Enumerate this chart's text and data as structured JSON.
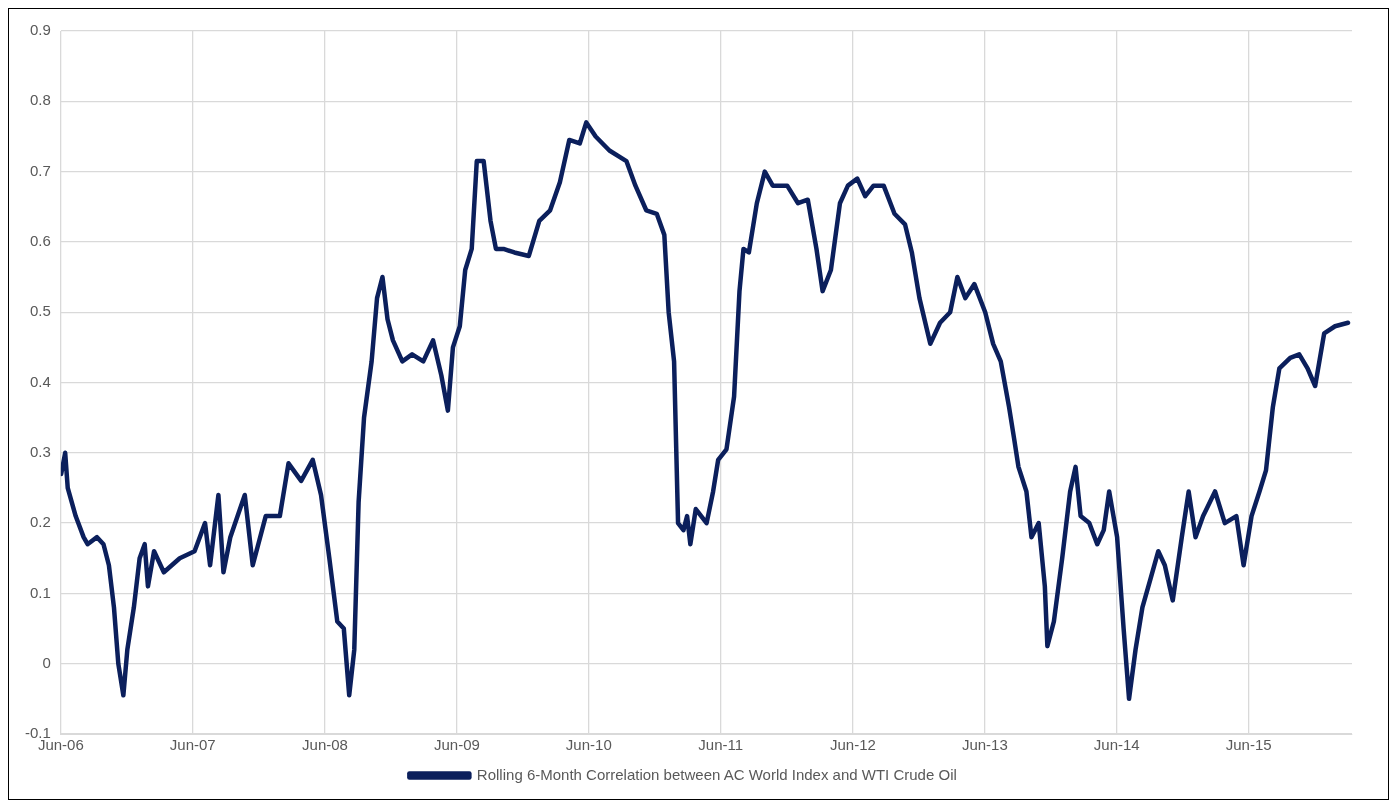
{
  "chart_data": {
    "type": "line",
    "x": [
      "2006-06-02",
      "2006-06-13",
      "2006-06-20",
      "2006-07-12",
      "2006-08-03",
      "2006-08-14",
      "2006-09-09",
      "2006-09-27",
      "2006-10-12",
      "2006-10-26",
      "2006-11-07",
      "2006-11-21",
      "2006-12-02",
      "2006-12-20",
      "2007-01-05",
      "2007-01-19",
      "2007-01-28",
      "2007-02-14",
      "2007-03-13",
      "2007-04-26",
      "2007-06-06",
      "2007-07-05",
      "2007-07-19",
      "2007-08-11",
      "2007-08-25",
      "2007-09-13",
      "2007-10-23",
      "2007-11-14",
      "2007-12-20",
      "2008-01-28",
      "2008-02-21",
      "2008-03-27",
      "2008-04-28",
      "2008-05-21",
      "2008-06-13",
      "2008-07-05",
      "2008-07-23",
      "2008-08-07",
      "2008-08-21",
      "2008-09-02",
      "2008-09-17",
      "2008-10-08",
      "2008-10-23",
      "2008-11-07",
      "2008-11-21",
      "2008-12-06",
      "2009-01-01",
      "2009-01-28",
      "2009-02-28",
      "2009-03-27",
      "2009-04-19",
      "2009-05-07",
      "2009-05-21",
      "2009-06-09",
      "2009-06-24",
      "2009-07-12",
      "2009-07-26",
      "2009-08-14",
      "2009-09-02",
      "2009-09-17",
      "2009-10-08",
      "2009-11-07",
      "2009-12-17",
      "2010-01-15",
      "2010-02-14",
      "2010-03-13",
      "2010-04-08",
      "2010-05-07",
      "2010-05-25",
      "2010-06-20",
      "2010-07-28",
      "2010-09-13",
      "2010-10-08",
      "2010-11-07",
      "2010-12-06",
      "2010-12-27",
      "2011-01-08",
      "2011-01-23",
      "2011-02-03",
      "2011-02-18",
      "2011-02-28",
      "2011-03-09",
      "2011-03-24",
      "2011-04-23",
      "2011-05-11",
      "2011-05-25",
      "2011-06-17",
      "2011-07-08",
      "2011-07-23",
      "2011-08-03",
      "2011-08-18",
      "2011-09-09",
      "2011-10-01",
      "2011-10-23",
      "2011-12-02",
      "2012-01-01",
      "2012-01-28",
      "2012-02-21",
      "2012-03-09",
      "2012-04-01",
      "2012-04-26",
      "2012-05-18",
      "2012-06-13",
      "2012-07-05",
      "2012-07-28",
      "2012-08-25",
      "2012-09-24",
      "2012-10-23",
      "2012-11-11",
      "2012-12-02",
      "2013-01-01",
      "2013-01-28",
      "2013-02-25",
      "2013-03-17",
      "2013-04-08",
      "2013-05-03",
      "2013-06-02",
      "2013-06-24",
      "2013-07-15",
      "2013-08-07",
      "2013-08-21",
      "2013-09-02",
      "2013-09-24",
      "2013-10-08",
      "2013-10-28",
      "2013-11-14",
      "2013-11-21",
      "2013-12-09",
      "2014-01-01",
      "2014-01-23",
      "2014-02-07",
      "2014-02-21",
      "2014-03-17",
      "2014-04-08",
      "2014-04-26",
      "2014-05-11",
      "2014-06-02",
      "2014-06-20",
      "2014-07-05",
      "2014-07-23",
      "2014-08-11",
      "2014-09-02",
      "2014-09-24",
      "2014-10-12",
      "2014-11-03",
      "2014-11-28",
      "2014-12-17",
      "2015-01-05",
      "2015-01-26",
      "2015-02-28",
      "2015-03-27",
      "2015-04-28",
      "2015-05-18",
      "2015-06-09",
      "2015-07-01",
      "2015-07-19",
      "2015-08-07",
      "2015-08-25",
      "2015-09-24",
      "2015-10-19",
      "2015-11-11",
      "2015-12-02",
      "2015-12-27",
      "2016-01-26",
      "2016-03-02"
    ],
    "series": [
      {
        "name": "Rolling 6-Month Correlation between AC World Index and WTI Crude Oil",
        "color": "#0b1f5c",
        "values": [
          0.27,
          0.3,
          0.25,
          0.21,
          0.18,
          0.17,
          0.18,
          0.17,
          0.14,
          0.08,
          0.0,
          -0.045,
          0.02,
          0.08,
          0.15,
          0.17,
          0.11,
          0.16,
          0.13,
          0.15,
          0.16,
          0.2,
          0.14,
          0.24,
          0.13,
          0.18,
          0.24,
          0.14,
          0.21,
          0.21,
          0.285,
          0.26,
          0.29,
          0.24,
          0.15,
          0.06,
          0.05,
          -0.045,
          0.02,
          0.23,
          0.35,
          0.43,
          0.52,
          0.55,
          0.49,
          0.46,
          0.43,
          0.44,
          0.43,
          0.46,
          0.41,
          0.36,
          0.45,
          0.48,
          0.56,
          0.59,
          0.715,
          0.715,
          0.63,
          0.59,
          0.59,
          0.585,
          0.58,
          0.63,
          0.645,
          0.685,
          0.745,
          0.74,
          0.77,
          0.75,
          0.73,
          0.715,
          0.68,
          0.645,
          0.64,
          0.61,
          0.5,
          0.43,
          0.2,
          0.19,
          0.21,
          0.17,
          0.22,
          0.2,
          0.245,
          0.29,
          0.305,
          0.38,
          0.53,
          0.59,
          0.585,
          0.655,
          0.7,
          0.68,
          0.68,
          0.655,
          0.66,
          0.59,
          0.53,
          0.56,
          0.655,
          0.68,
          0.69,
          0.665,
          0.68,
          0.68,
          0.64,
          0.625,
          0.585,
          0.52,
          0.455,
          0.485,
          0.5,
          0.55,
          0.52,
          0.54,
          0.5,
          0.455,
          0.43,
          0.365,
          0.32,
          0.28,
          0.245,
          0.18,
          0.2,
          0.11,
          0.025,
          0.06,
          0.15,
          0.245,
          0.28,
          0.21,
          0.2,
          0.17,
          0.19,
          0.245,
          0.18,
          0.05,
          -0.05,
          0.02,
          0.08,
          0.12,
          0.16,
          0.14,
          0.09,
          0.18,
          0.245,
          0.18,
          0.21,
          0.245,
          0.2,
          0.21,
          0.14,
          0.21,
          0.245,
          0.275,
          0.365,
          0.42,
          0.435,
          0.44,
          0.42,
          0.395,
          0.47,
          0.48,
          0.485
        ]
      }
    ],
    "xlim": [
      "2006-06-01",
      "2016-03-13"
    ],
    "xticks": [
      {
        "value": "2006-06-01",
        "label": "Jun-06"
      },
      {
        "value": "2007-06-01",
        "label": "Jun-07"
      },
      {
        "value": "2008-06-01",
        "label": "Jun-08"
      },
      {
        "value": "2009-06-01",
        "label": "Jun-09"
      },
      {
        "value": "2010-06-01",
        "label": "Jun-10"
      },
      {
        "value": "2011-06-01",
        "label": "Jun-11"
      },
      {
        "value": "2012-06-01",
        "label": "Jun-12"
      },
      {
        "value": "2013-06-01",
        "label": "Jun-13"
      },
      {
        "value": "2014-06-01",
        "label": "Jun-14"
      },
      {
        "value": "2015-06-01",
        "label": "Jun-15"
      }
    ],
    "ylim": [
      -0.1,
      0.9
    ],
    "yticks": [
      -0.1,
      0,
      0.1,
      0.2,
      0.3,
      0.4,
      0.5,
      0.6,
      0.7,
      0.8,
      0.9
    ],
    "grid": true,
    "legend": "bottom",
    "marker": "none",
    "line_style": "solid"
  }
}
